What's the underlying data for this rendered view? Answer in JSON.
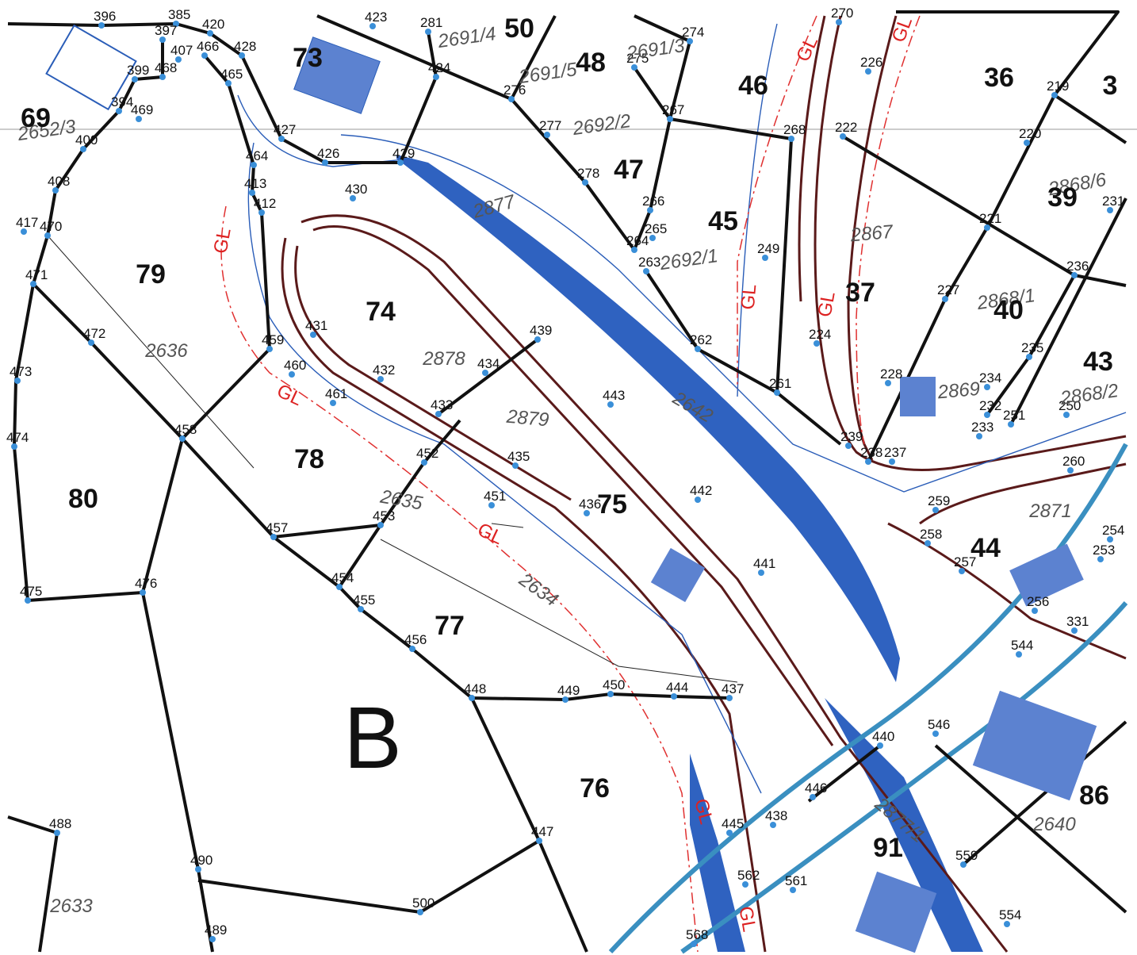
{
  "parcel_numbers": [
    "69",
    "73",
    "50",
    "48",
    "46",
    "36",
    "3",
    "47",
    "45",
    "39",
    "79",
    "74",
    "37",
    "40",
    "43",
    "78",
    "80",
    "75",
    "44",
    "77",
    "76",
    "86",
    "91"
  ],
  "sector_label": "B",
  "plot_numbers": [
    "2652/3",
    "2691/4",
    "2691/5",
    "2691/3",
    "2692/2",
    "2877",
    "2692/1",
    "2867",
    "2636",
    "2878",
    "2879",
    "2642",
    "2869",
    "2868/2",
    "2868/1",
    "2868/6",
    "2635",
    "2634",
    "2871",
    "2640",
    "2633",
    "2877/1"
  ],
  "line_labels": [
    "GL",
    "GL",
    "GL",
    "GL",
    "GL",
    "GL",
    "GL",
    "GL",
    "GL"
  ],
  "point_numbers": [
    "385",
    "396",
    "397",
    "420",
    "428",
    "466",
    "407",
    "468",
    "399",
    "465",
    "394",
    "469",
    "400",
    "426",
    "427",
    "464",
    "423",
    "424",
    "429",
    "281",
    "276",
    "277",
    "275",
    "274",
    "267",
    "278",
    "266",
    "265",
    "264",
    "263",
    "262",
    "261",
    "249",
    "268",
    "222",
    "226",
    "270",
    "219",
    "220",
    "221",
    "231",
    "236",
    "227",
    "224",
    "228",
    "234",
    "235",
    "232",
    "233",
    "251",
    "250",
    "239",
    "238",
    "237",
    "260",
    "259",
    "258",
    "257",
    "254",
    "256",
    "253",
    "331",
    "544",
    "430",
    "412",
    "413",
    "417",
    "470",
    "471",
    "408",
    "472",
    "473",
    "474",
    "475",
    "476",
    "459",
    "460",
    "461",
    "431",
    "432",
    "433",
    "434",
    "439",
    "443",
    "435",
    "436",
    "442",
    "441",
    "451",
    "452",
    "453",
    "457",
    "458",
    "454",
    "455",
    "456",
    "448",
    "449",
    "450",
    "444",
    "437",
    "447",
    "488",
    "490",
    "489",
    "500",
    "445",
    "440",
    "446",
    "562",
    "561",
    "568",
    "559",
    "554",
    "546",
    "438"
  ]
}
